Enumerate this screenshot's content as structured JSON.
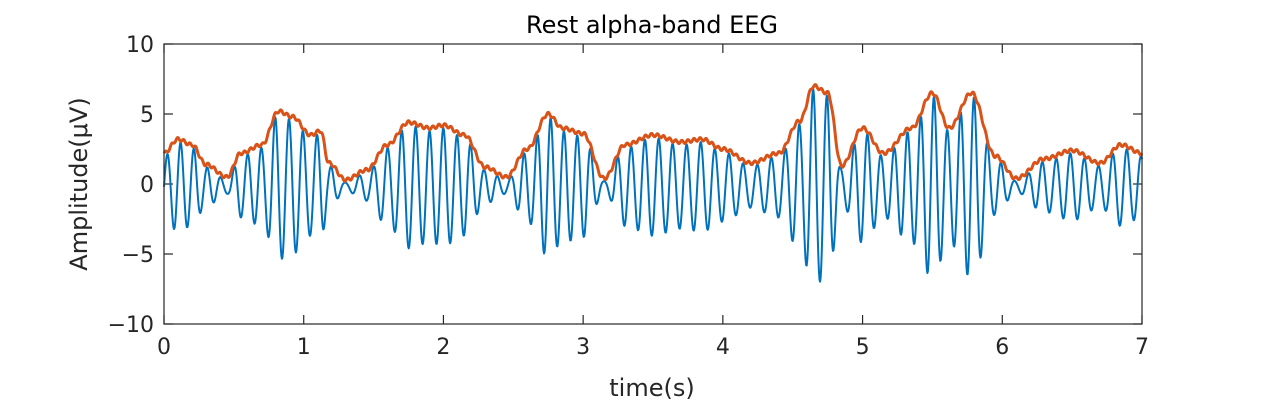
{
  "chart_data": {
    "type": "line",
    "title": "Rest alpha-band EEG",
    "xlabel": "time(s)",
    "ylabel": "Amplitude(μV)",
    "xlim": [
      0,
      7
    ],
    "ylim": [
      -10,
      10
    ],
    "xticks": [
      0,
      1,
      2,
      3,
      4,
      5,
      6,
      7
    ],
    "yticks": [
      -10,
      -5,
      0,
      5,
      10
    ],
    "xtick_labels": [
      "0",
      "1",
      "2",
      "3",
      "4",
      "5",
      "6",
      "7"
    ],
    "ytick_labels": [
      "−10",
      "−5",
      "0",
      "5",
      "10"
    ],
    "grid": false,
    "box": true,
    "series": [
      {
        "kind": "oscillation",
        "color": "#0072BD",
        "frequency_hz": 10.2,
        "sample_rate_hz": 250,
        "baseline": -0.2
      },
      {
        "kind": "envelope",
        "color": "#D95319",
        "x": [
          0,
          0.1,
          0.2,
          0.3,
          0.45,
          0.55,
          0.7,
          0.82,
          0.92,
          1.05,
          1.12,
          1.18,
          1.3,
          1.45,
          1.6,
          1.75,
          1.9,
          2.0,
          2.15,
          2.3,
          2.45,
          2.6,
          2.75,
          2.85,
          3.0,
          3.15,
          3.3,
          3.5,
          3.7,
          3.85,
          4.0,
          4.2,
          4.4,
          4.55,
          4.65,
          4.75,
          4.85,
          5.0,
          5.15,
          5.35,
          5.5,
          5.62,
          5.78,
          5.95,
          6.1,
          6.3,
          6.5,
          6.7,
          6.85,
          7.0
        ],
        "y": [
          2.2,
          3.2,
          2.8,
          1.4,
          0.5,
          2.2,
          2.8,
          5.2,
          4.8,
          3.5,
          3.8,
          1.5,
          0.3,
          1.0,
          2.8,
          4.4,
          4.0,
          4.2,
          3.5,
          1.2,
          0.5,
          2.5,
          5.0,
          4.0,
          3.6,
          0.4,
          2.8,
          3.5,
          3.0,
          3.2,
          2.5,
          1.5,
          2.2,
          4.5,
          7.0,
          6.5,
          1.3,
          4.0,
          2.2,
          4.0,
          6.5,
          4.0,
          6.5,
          2.0,
          0.4,
          1.8,
          2.4,
          1.5,
          2.8,
          2.2
        ]
      }
    ]
  }
}
